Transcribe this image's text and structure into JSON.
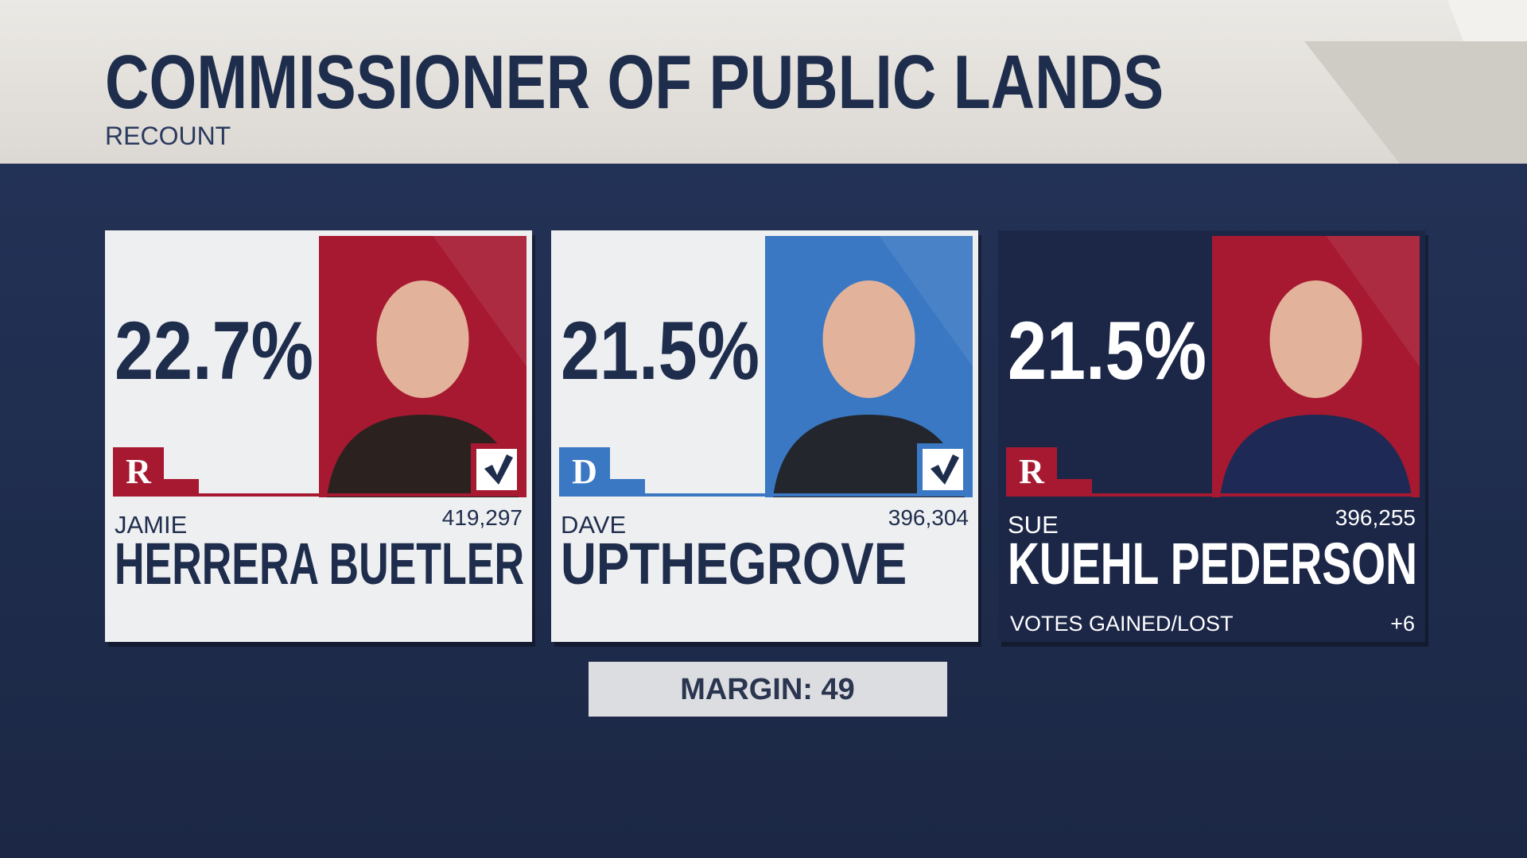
{
  "header": {
    "title": "COMMISSIONER OF PUBLIC LANDS",
    "subtitle": "RECOUNT"
  },
  "candidates": [
    {
      "party": "R",
      "color": "#a71930",
      "percent": "22.7%",
      "first_name": "JAMIE",
      "last_name": "HERRERA BUETLER",
      "votes": "419,297",
      "advancing": true,
      "highlighted": false
    },
    {
      "party": "D",
      "color": "#3a78c3",
      "percent": "21.5%",
      "first_name": "DAVE",
      "last_name": "UPTHEGROVE",
      "votes": "396,304",
      "advancing": true,
      "highlighted": false
    },
    {
      "party": "R",
      "color": "#a71930",
      "percent": "21.5%",
      "first_name": "SUE",
      "last_name": "KUEHL PEDERSON",
      "votes": "396,255",
      "votes_change_label": "VOTES GAINED/LOST",
      "votes_change": "+6",
      "advancing": false,
      "highlighted": true
    }
  ],
  "margin": {
    "label": "MARGIN:",
    "value": "49"
  }
}
